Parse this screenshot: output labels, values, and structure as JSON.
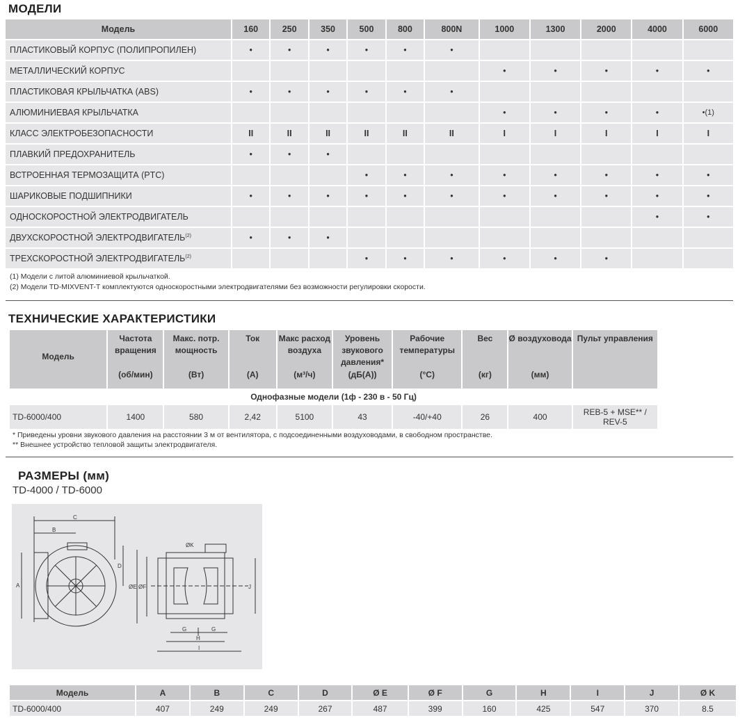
{
  "models_section": {
    "title": "МОДЕЛИ",
    "header_label": "Модель",
    "models": [
      "160",
      "250",
      "350",
      "500",
      "800",
      "800N",
      "1000",
      "1300",
      "2000",
      "4000",
      "6000"
    ],
    "rows": [
      {
        "label": "ПЛАСТИКОВЫЙ КОРПУС (ПОЛИПРОПИЛЕН)",
        "sup": "",
        "marks": [
          "•",
          "•",
          "•",
          "•",
          "•",
          "•",
          "",
          "",
          "",
          "",
          ""
        ]
      },
      {
        "label": "МЕТАЛЛИЧЕСКИЙ КОРПУС",
        "sup": "",
        "marks": [
          "",
          "",
          "",
          "",
          "",
          "",
          "•",
          "•",
          "•",
          "•",
          "•"
        ]
      },
      {
        "label": "ПЛАСТИКОВАЯ КРЫЛЬЧАТКА (ABS)",
        "sup": "",
        "marks": [
          "•",
          "•",
          "•",
          "•",
          "•",
          "•",
          "",
          "",
          "",
          "",
          ""
        ]
      },
      {
        "label": "АЛЮМИНИЕВАЯ КРЫЛЬЧАТКА",
        "sup": "",
        "marks": [
          "",
          "",
          "",
          "",
          "",
          "",
          "•",
          "•",
          "•",
          "•",
          "•(1)"
        ]
      },
      {
        "label": "КЛАСС ЭЛЕКТРОБЕЗОПАСНОСТИ",
        "sup": "",
        "marks": [
          "II",
          "II",
          "II",
          "II",
          "II",
          "II",
          "I",
          "I",
          "I",
          "I",
          "I"
        ]
      },
      {
        "label": "ПЛАВКИЙ ПРЕДОХРАНИТЕЛЬ",
        "sup": "",
        "marks": [
          "•",
          "•",
          "•",
          "",
          "",
          "",
          "",
          "",
          "",
          "",
          ""
        ]
      },
      {
        "label": "ВСТРОЕННАЯ ТЕРМОЗАЩИТА (PTC)",
        "sup": "",
        "marks": [
          "",
          "",
          "",
          "•",
          "•",
          "•",
          "•",
          "•",
          "•",
          "•",
          "•"
        ]
      },
      {
        "label": "ШАРИКОВЫЕ ПОДШИПНИКИ",
        "sup": "",
        "marks": [
          "•",
          "•",
          "•",
          "•",
          "•",
          "•",
          "•",
          "•",
          "•",
          "•",
          "•"
        ]
      },
      {
        "label": "ОДНОСКОРОСТНОЙ ЭЛЕКТРОДВИГАТЕЛЬ",
        "sup": "",
        "marks": [
          "",
          "",
          "",
          "",
          "",
          "",
          "",
          "",
          "",
          "•",
          "•"
        ]
      },
      {
        "label": "ДВУХСКОРОСТНОЙ ЭЛЕКТРОДВИГАТЕЛЬ",
        "sup": "(2)",
        "marks": [
          "•",
          "•",
          "•",
          "",
          "",
          "",
          "",
          "",
          "",
          "",
          ""
        ]
      },
      {
        "label": "ТРЕХСКОРОСТНОЙ ЭЛЕКТРОДВИГАТЕЛЬ",
        "sup": "(2)",
        "marks": [
          "",
          "",
          "",
          "•",
          "•",
          "•",
          "•",
          "•",
          "•",
          "",
          ""
        ]
      }
    ],
    "footnotes": [
      "(1) Модели с литой алюминиевой крыльчаткой.",
      "(2) Модели TD-MIXVENT-T комплектуются односкоростными электродвигателями без возможности регулировки скорости."
    ]
  },
  "tech_section": {
    "title": "ТЕХНИЧЕСКИЕ ХАРАКТЕРИСТИКИ",
    "headers": [
      {
        "name": "Модель",
        "unit": ""
      },
      {
        "name": "Частота вращения",
        "unit": "(об/мин)"
      },
      {
        "name": "Макс. потр. мощность",
        "unit": "(Вт)"
      },
      {
        "name": "Ток",
        "unit": "(А)"
      },
      {
        "name": "Макс расход воздуха",
        "unit": "(м³/ч)"
      },
      {
        "name": "Уровень звукового давления*",
        "unit": "(дБ(А))"
      },
      {
        "name": "Рабочие температуры",
        "unit": "(°C)"
      },
      {
        "name": "Вес",
        "unit": "(кг)"
      },
      {
        "name": "Ø воздуховода",
        "unit": "(мм)"
      },
      {
        "name": "Пульт управления",
        "unit": ""
      }
    ],
    "group_label": "Однофазные модели (1ф - 230 в - 50 Гц)",
    "row": [
      "TD-6000/400",
      "1400",
      "580",
      "2,42",
      "5100",
      "43",
      "-40/+40",
      "26",
      "400",
      "REB-5 + MSE** / REV-5"
    ],
    "footnotes": [
      "* Приведены уровни звукового давления на расстоянии 3 м от вентилятора, с подсоединенными воздуховодами, в свободном пространстве.",
      "** Внешнее устройство тепловой защиты электродвигателя."
    ]
  },
  "dims_section": {
    "title": "РАЗМЕРЫ (мм)",
    "subtitle": "TD-4000 / TD-6000",
    "diagram_labels": {
      "A": "A",
      "B": "B",
      "C": "C",
      "D": "D",
      "E": "ØE",
      "F": "ØF",
      "G": "G",
      "H": "H",
      "I": "I",
      "J": "J",
      "K": "ØK"
    },
    "headers": [
      "Модель",
      "A",
      "B",
      "C",
      "D",
      "Ø E",
      "Ø F",
      "G",
      "H",
      "I",
      "J",
      "Ø K"
    ],
    "row": [
      "TD-6000/400",
      "407",
      "249",
      "249",
      "267",
      "487",
      "399",
      "160",
      "425",
      "547",
      "370",
      "8.5"
    ]
  }
}
